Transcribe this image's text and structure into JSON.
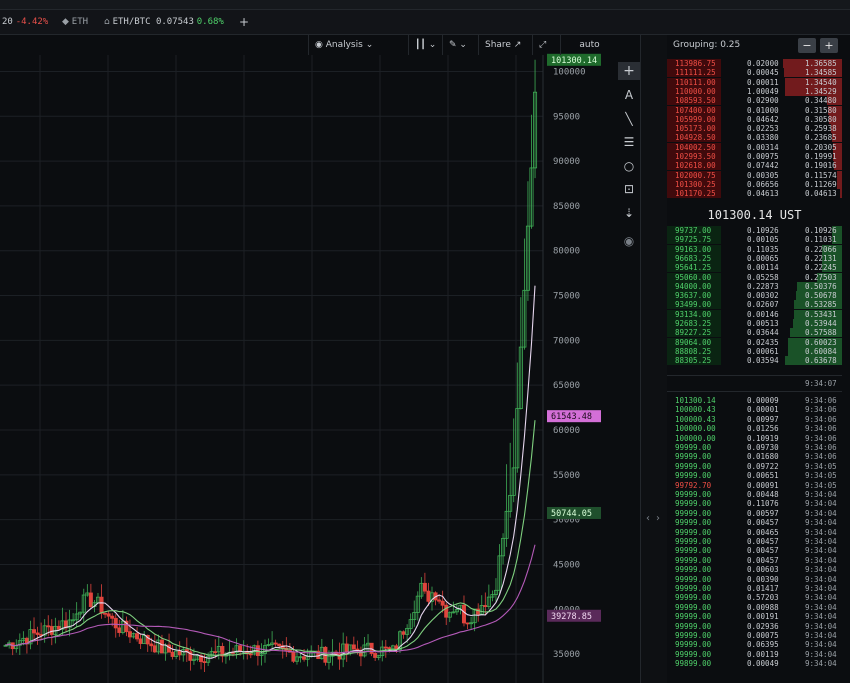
{
  "tabs": [
    {
      "symbol": "20",
      "change": "-4.42%",
      "dir": "down"
    },
    {
      "symbol": "ETH",
      "change": "",
      "dir": ""
    },
    {
      "symbol": "ETH/BTC 0.07543",
      "change": "0.68%",
      "dir": "up"
    },
    {
      "symbol": "+",
      "change": "",
      "dir": ""
    }
  ],
  "toolbar": {
    "analysis": "Analysis",
    "share": "Share",
    "auto": "auto"
  },
  "chart_data": {
    "type": "candlestick",
    "y_ticks": [
      100000,
      95000,
      90000,
      85000,
      80000,
      75000,
      70000,
      65000,
      60000,
      55000,
      50000,
      45000,
      40000,
      35000
    ],
    "y_range": [
      32000,
      101500
    ],
    "price_tags": [
      {
        "label": "101300.14",
        "value": 101300,
        "bg": "#1f6b2c",
        "fg": "#d9ffd9"
      },
      {
        "label": "61543.48",
        "value": 61543,
        "bg": "#d36fd7",
        "fg": "#1a0a1a"
      },
      {
        "label": "50744.05",
        "value": 50744,
        "bg": "#1f4f2c",
        "fg": "#d9ffd9"
      },
      {
        "label": "39278.85",
        "value": 39278,
        "bg": "#5a2a5a",
        "fg": "#f1d9f1"
      }
    ]
  },
  "orderbook": {
    "grouping_label": "Grouping: 0.25",
    "minus": "−",
    "plus": "+",
    "asks": [
      {
        "p": "113986.75",
        "a": "0.02000",
        "t": "1.36585",
        "d": 0.98
      },
      {
        "p": "111111.25",
        "a": "0.00045",
        "t": "1.34585",
        "d": 0.96
      },
      {
        "p": "110111.00",
        "a": "0.00011",
        "t": "1.34540",
        "d": 0.95
      },
      {
        "p": "110000.00",
        "a": "1.00049",
        "t": "1.34529",
        "d": 0.95
      },
      {
        "p": "108593.50",
        "a": "0.02900",
        "t": "0.34480",
        "d": 0.25
      },
      {
        "p": "107400.00",
        "a": "0.01000",
        "t": "0.31580",
        "d": 0.23
      },
      {
        "p": "105999.00",
        "a": "0.04642",
        "t": "0.30580",
        "d": 0.22
      },
      {
        "p": "105173.00",
        "a": "0.02253",
        "t": "0.25938",
        "d": 0.19
      },
      {
        "p": "104928.50",
        "a": "0.03380",
        "t": "0.23685",
        "d": 0.17
      },
      {
        "p": "104002.50",
        "a": "0.00314",
        "t": "0.20305",
        "d": 0.15
      },
      {
        "p": "102993.50",
        "a": "0.00975",
        "t": "0.19991",
        "d": 0.15
      },
      {
        "p": "102618.00",
        "a": "0.07442",
        "t": "0.19016",
        "d": 0.14
      },
      {
        "p": "102000.75",
        "a": "0.00305",
        "t": "0.11574",
        "d": 0.09
      },
      {
        "p": "101300.25",
        "a": "0.06656",
        "t": "0.11269",
        "d": 0.08
      },
      {
        "p": "101170.25",
        "a": "0.04613",
        "t": "0.04613",
        "d": 0.04
      }
    ],
    "mid_price": "101300.14 UST",
    "bids": [
      {
        "p": "99737.00",
        "a": "0.10926",
        "t": "0.10926",
        "d": 0.16
      },
      {
        "p": "99725.75",
        "a": "0.00105",
        "t": "0.11031",
        "d": 0.17
      },
      {
        "p": "99163.00",
        "a": "0.11035",
        "t": "0.22066",
        "d": 0.33
      },
      {
        "p": "96683.25",
        "a": "0.00065",
        "t": "0.22131",
        "d": 0.33
      },
      {
        "p": "95641.25",
        "a": "0.00114",
        "t": "0.22245",
        "d": 0.33
      },
      {
        "p": "95060.00",
        "a": "0.05258",
        "t": "0.27503",
        "d": 0.41
      },
      {
        "p": "94000.00",
        "a": "0.22873",
        "t": "0.50376",
        "d": 0.75
      },
      {
        "p": "93637.00",
        "a": "0.00302",
        "t": "0.50678",
        "d": 0.76
      },
      {
        "p": "93499.00",
        "a": "0.02607",
        "t": "0.53285",
        "d": 0.8
      },
      {
        "p": "93134.00",
        "a": "0.00146",
        "t": "0.53431",
        "d": 0.8
      },
      {
        "p": "92683.25",
        "a": "0.00513",
        "t": "0.53944",
        "d": 0.81
      },
      {
        "p": "89227.25",
        "a": "0.03644",
        "t": "0.57588",
        "d": 0.86
      },
      {
        "p": "89064.00",
        "a": "0.02435",
        "t": "0.60023",
        "d": 0.9
      },
      {
        "p": "88808.25",
        "a": "0.00061",
        "t": "0.60084",
        "d": 0.9
      },
      {
        "p": "88305.25",
        "a": "0.03594",
        "t": "0.63678",
        "d": 0.95
      }
    ],
    "book_time": "9:34:07",
    "trades": [
      {
        "p": "101300.14",
        "a": "0.00009",
        "t": "9:34:06",
        "s": "up"
      },
      {
        "p": "100000.43",
        "a": "0.00001",
        "t": "9:34:06",
        "s": "up"
      },
      {
        "p": "100000.43",
        "a": "0.00997",
        "t": "9:34:06",
        "s": "up"
      },
      {
        "p": "100000.00",
        "a": "0.01256",
        "t": "9:34:06",
        "s": "up"
      },
      {
        "p": "100000.00",
        "a": "0.10919",
        "t": "9:34:06",
        "s": "up"
      },
      {
        "p": "99999.00",
        "a": "0.09730",
        "t": "9:34:06",
        "s": "up"
      },
      {
        "p": "99999.00",
        "a": "0.01680",
        "t": "9:34:06",
        "s": "up"
      },
      {
        "p": "99999.00",
        "a": "0.09722",
        "t": "9:34:05",
        "s": "up"
      },
      {
        "p": "99999.00",
        "a": "0.00651",
        "t": "9:34:05",
        "s": "up"
      },
      {
        "p": "99792.70",
        "a": "0.00091",
        "t": "9:34:05",
        "s": "down"
      },
      {
        "p": "99999.00",
        "a": "0.00448",
        "t": "9:34:04",
        "s": "up"
      },
      {
        "p": "99999.00",
        "a": "0.11076",
        "t": "9:34:04",
        "s": "up"
      },
      {
        "p": "99999.00",
        "a": "0.00597",
        "t": "9:34:04",
        "s": "up"
      },
      {
        "p": "99999.00",
        "a": "0.00457",
        "t": "9:34:04",
        "s": "up"
      },
      {
        "p": "99999.00",
        "a": "0.00465",
        "t": "9:34:04",
        "s": "up"
      },
      {
        "p": "99999.00",
        "a": "0.00457",
        "t": "9:34:04",
        "s": "up"
      },
      {
        "p": "99999.00",
        "a": "0.00457",
        "t": "9:34:04",
        "s": "up"
      },
      {
        "p": "99999.00",
        "a": "0.00457",
        "t": "9:34:04",
        "s": "up"
      },
      {
        "p": "99999.00",
        "a": "0.00603",
        "t": "9:34:04",
        "s": "up"
      },
      {
        "p": "99999.00",
        "a": "0.00390",
        "t": "9:34:04",
        "s": "up"
      },
      {
        "p": "99999.00",
        "a": "0.01417",
        "t": "9:34:04",
        "s": "up"
      },
      {
        "p": "99999.00",
        "a": "0.57203",
        "t": "9:34:04",
        "s": "up"
      },
      {
        "p": "99999.00",
        "a": "0.00988",
        "t": "9:34:04",
        "s": "up"
      },
      {
        "p": "99999.00",
        "a": "0.00191",
        "t": "9:34:04",
        "s": "up"
      },
      {
        "p": "99999.00",
        "a": "0.02936",
        "t": "9:34:04",
        "s": "up"
      },
      {
        "p": "99999.00",
        "a": "0.00075",
        "t": "9:34:04",
        "s": "up"
      },
      {
        "p": "99999.00",
        "a": "0.06395",
        "t": "9:34:04",
        "s": "up"
      },
      {
        "p": "99999.00",
        "a": "0.00119",
        "t": "9:34:04",
        "s": "up"
      },
      {
        "p": "99899.00",
        "a": "0.00049",
        "t": "9:34:04",
        "s": "up"
      }
    ]
  },
  "icons": {
    "eye": "eye-icon",
    "candles": "candles-icon",
    "pencil": "pencil-icon",
    "expand": "expand-icon",
    "plus": "plus-icon",
    "text": "text-icon",
    "line": "trendline-icon",
    "fib": "fib-icon",
    "circle": "circle-icon",
    "measure": "measure-icon",
    "magnet": "magnet-icon"
  }
}
